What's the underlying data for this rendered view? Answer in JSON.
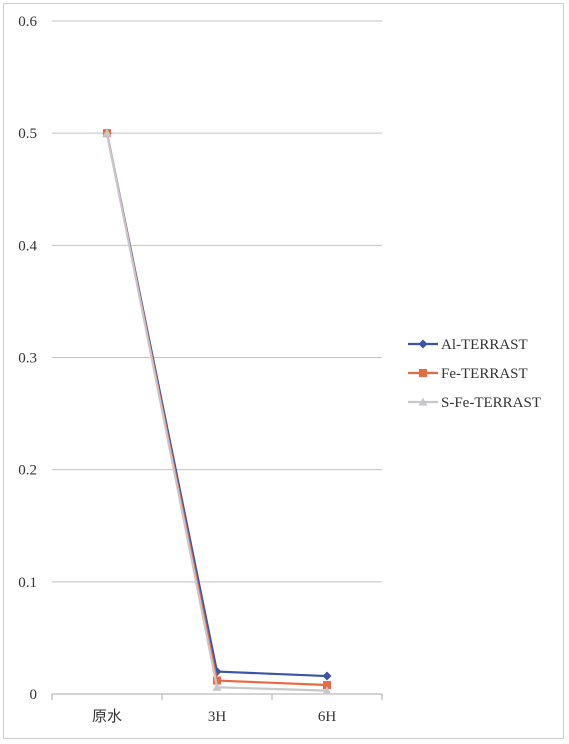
{
  "chart_data": {
    "type": "line",
    "categories": [
      "原水",
      "3H",
      "6H"
    ],
    "ylim": [
      0,
      0.6
    ],
    "yticks": [
      "0",
      "0.1",
      "0.2",
      "0.3",
      "0.4",
      "0.5",
      "0.6"
    ],
    "grid": true,
    "legend_position": "right",
    "series": [
      {
        "name": "Al-TERRAST",
        "values": [
          0.5,
          0.02,
          0.016
        ],
        "color": "#3b54a8",
        "marker": "diamond"
      },
      {
        "name": "Fe-TERRAST",
        "values": [
          0.5,
          0.012,
          0.008
        ],
        "color": "#e86a45",
        "marker": "square"
      },
      {
        "name": "S-Fe-TERRAST",
        "values": [
          0.5,
          0.006,
          0.003
        ],
        "color": "#c8c8cc",
        "marker": "triangle"
      }
    ]
  }
}
